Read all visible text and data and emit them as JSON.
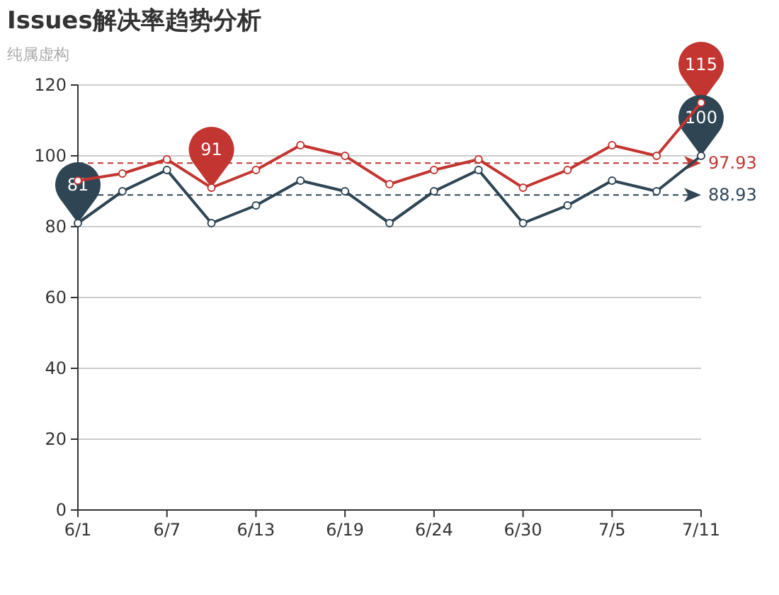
{
  "chart_data": {
    "type": "line",
    "title": "Issues解决率趋势分析",
    "subtitle": "纯属虚构",
    "categories": [
      "6/1",
      null,
      "6/7",
      null,
      "6/13",
      null,
      "6/19",
      null,
      "6/24",
      null,
      "6/30",
      null,
      "7/5",
      null,
      "7/11"
    ],
    "series": [
      {
        "color": "#c23531",
        "values": [
          93,
          95,
          99,
          91,
          96,
          103,
          100,
          92,
          96,
          99,
          91,
          96,
          103,
          100,
          115
        ]
      },
      {
        "color": "#2f4554",
        "values": [
          81,
          90,
          96,
          81,
          86,
          93,
          90,
          81,
          90,
          96,
          81,
          86,
          93,
          90,
          100
        ]
      }
    ],
    "ylim": [
      0,
      120
    ],
    "yticks": [
      0,
      20,
      40,
      60,
      80,
      100,
      120
    ],
    "grid": "y",
    "marker": "circle",
    "ref_lines": [
      {
        "axis": "y",
        "value": 97.93,
        "label": "97.93",
        "color": "#c23531",
        "line_style": "dashed"
      },
      {
        "axis": "y",
        "value": 88.93,
        "label": "88.93",
        "color": "#2f4554",
        "line_style": "dashed"
      }
    ],
    "annotations": [
      {
        "text": "115",
        "x": "7/11",
        "y": 115
      },
      {
        "text": "91",
        "y": 91
      },
      {
        "text": "100",
        "x": "7/11",
        "y": 100
      },
      {
        "text": "81",
        "x": "6/1",
        "y": 81
      }
    ]
  }
}
